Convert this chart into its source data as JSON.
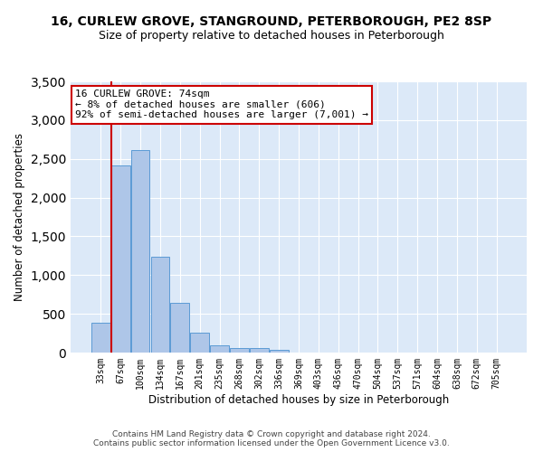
{
  "title1": "16, CURLEW GROVE, STANGROUND, PETERBOROUGH, PE2 8SP",
  "title2": "Size of property relative to detached houses in Peterborough",
  "xlabel": "Distribution of detached houses by size in Peterborough",
  "ylabel": "Number of detached properties",
  "footnote": "Contains HM Land Registry data © Crown copyright and database right 2024.\nContains public sector information licensed under the Open Government Licence v3.0.",
  "bar_labels": [
    "33sqm",
    "67sqm",
    "100sqm",
    "134sqm",
    "167sqm",
    "201sqm",
    "235sqm",
    "268sqm",
    "302sqm",
    "336sqm",
    "369sqm",
    "403sqm",
    "436sqm",
    "470sqm",
    "504sqm",
    "537sqm",
    "571sqm",
    "604sqm",
    "638sqm",
    "672sqm",
    "705sqm"
  ],
  "bar_values": [
    390,
    2420,
    2610,
    1240,
    640,
    255,
    90,
    60,
    55,
    40,
    0,
    0,
    0,
    0,
    0,
    0,
    0,
    0,
    0,
    0,
    0
  ],
  "bar_color": "#aec6e8",
  "bar_edge_color": "#5b9bd5",
  "highlight_bar_index": 1,
  "annotation_box_text": "16 CURLEW GROVE: 74sqm\n← 8% of detached houses are smaller (606)\n92% of semi-detached houses are larger (7,001) →",
  "annotation_box_facecolor": "white",
  "annotation_box_edgecolor": "#cc0000",
  "vline_color": "#cc0000",
  "bg_color": "#dce9f8",
  "ylim": [
    0,
    3500
  ],
  "yticks": [
    0,
    500,
    1000,
    1500,
    2000,
    2500,
    3000,
    3500
  ]
}
